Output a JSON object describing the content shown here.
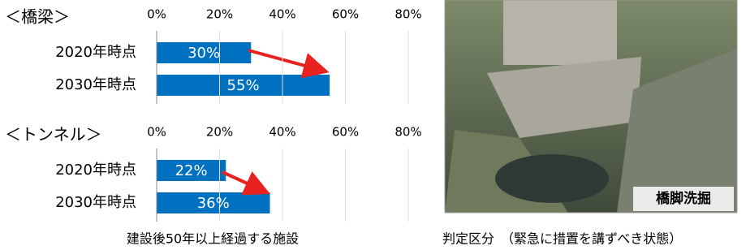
{
  "chart_data": [
    {
      "type": "bar",
      "orientation": "horizontal",
      "title": "＜橋梁＞",
      "categories": [
        "2020年時点",
        "2030年時点"
      ],
      "values": [
        30,
        55
      ],
      "value_labels": [
        "30%",
        "55%"
      ],
      "color": "#0070c0",
      "xlim": [
        0,
        80
      ],
      "xticks": [
        {
          "value": 0,
          "label": "0%"
        },
        {
          "value": 20,
          "label": "20%"
        },
        {
          "value": 40,
          "label": "40%"
        },
        {
          "value": 60,
          "label": "60%"
        },
        {
          "value": 80,
          "label": "80%"
        }
      ],
      "grid": true
    },
    {
      "type": "bar",
      "orientation": "horizontal",
      "title": "＜トンネル＞",
      "categories": [
        "2020年時点",
        "2030年時点"
      ],
      "values": [
        22,
        36
      ],
      "value_labels": [
        "22%",
        "36%"
      ],
      "color": "#0070c0",
      "xlim": [
        0,
        80
      ],
      "xticks": [
        {
          "value": 0,
          "label": "0%"
        },
        {
          "value": 20,
          "label": "20%"
        },
        {
          "value": 40,
          "label": "40%"
        },
        {
          "value": 60,
          "label": "60%"
        },
        {
          "value": 80,
          "label": "80%"
        }
      ],
      "grid": true
    }
  ],
  "caption": "建設後50年以上経過する施設",
  "photo": {
    "label": "橋脚洗掘",
    "caption": "判定区分　（緊急に措置を講ずべき状態）"
  }
}
